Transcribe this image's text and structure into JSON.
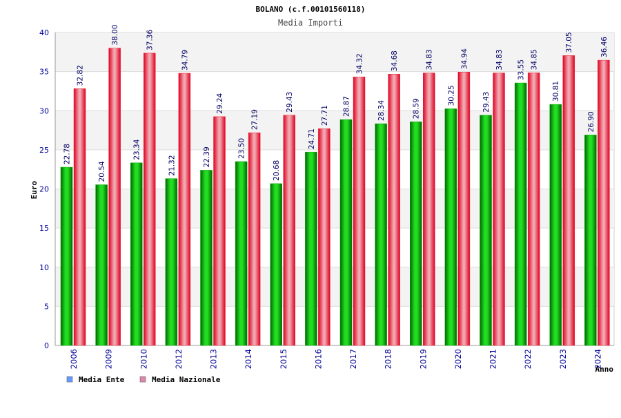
{
  "chart_data": {
    "type": "bar",
    "title": "BOLANO (c.f.00101560118)",
    "subtitle": "Media Importi",
    "xlabel": "Anno",
    "ylabel": "Euro",
    "ylim": [
      0,
      40
    ],
    "yticks": [
      0,
      5,
      10,
      15,
      20,
      25,
      30,
      35,
      40
    ],
    "grid": true,
    "legend_position": "bottom-left",
    "categories": [
      "2006",
      "2009",
      "2010",
      "2012",
      "2013",
      "2014",
      "2015",
      "2016",
      "2017",
      "2018",
      "2019",
      "2020",
      "2021",
      "2022",
      "2023",
      "2024"
    ],
    "series": [
      {
        "name": "Media Ente",
        "color": "#00aa00",
        "legend_color": "#6699ff",
        "values": [
          22.78,
          20.54,
          23.34,
          21.32,
          22.39,
          23.5,
          20.68,
          24.71,
          28.87,
          28.34,
          28.59,
          30.25,
          29.43,
          33.55,
          30.81,
          26.9
        ],
        "labels": [
          "22.78",
          "20.54",
          "23.34",
          "21.32",
          "22.39",
          "23.50",
          "20.68",
          "24.71",
          "28.87",
          "28.34",
          "28.59",
          "30.25",
          "29.43",
          "33.55",
          "30.81",
          "26.90"
        ]
      },
      {
        "name": "Media Nazionale",
        "color": "#ee2233",
        "legend_color": "#dd88aa",
        "values": [
          32.82,
          38.0,
          37.36,
          34.79,
          29.24,
          27.19,
          29.43,
          27.71,
          34.32,
          34.68,
          34.83,
          34.94,
          34.83,
          34.85,
          37.05,
          36.46
        ],
        "labels": [
          "32.82",
          "38.00",
          "37.36",
          "34.79",
          "29.24",
          "27.19",
          "29.43",
          "27.71",
          "34.32",
          "34.68",
          "34.83",
          "34.94",
          "34.83",
          "34.85",
          "37.05",
          "36.46"
        ]
      }
    ]
  }
}
